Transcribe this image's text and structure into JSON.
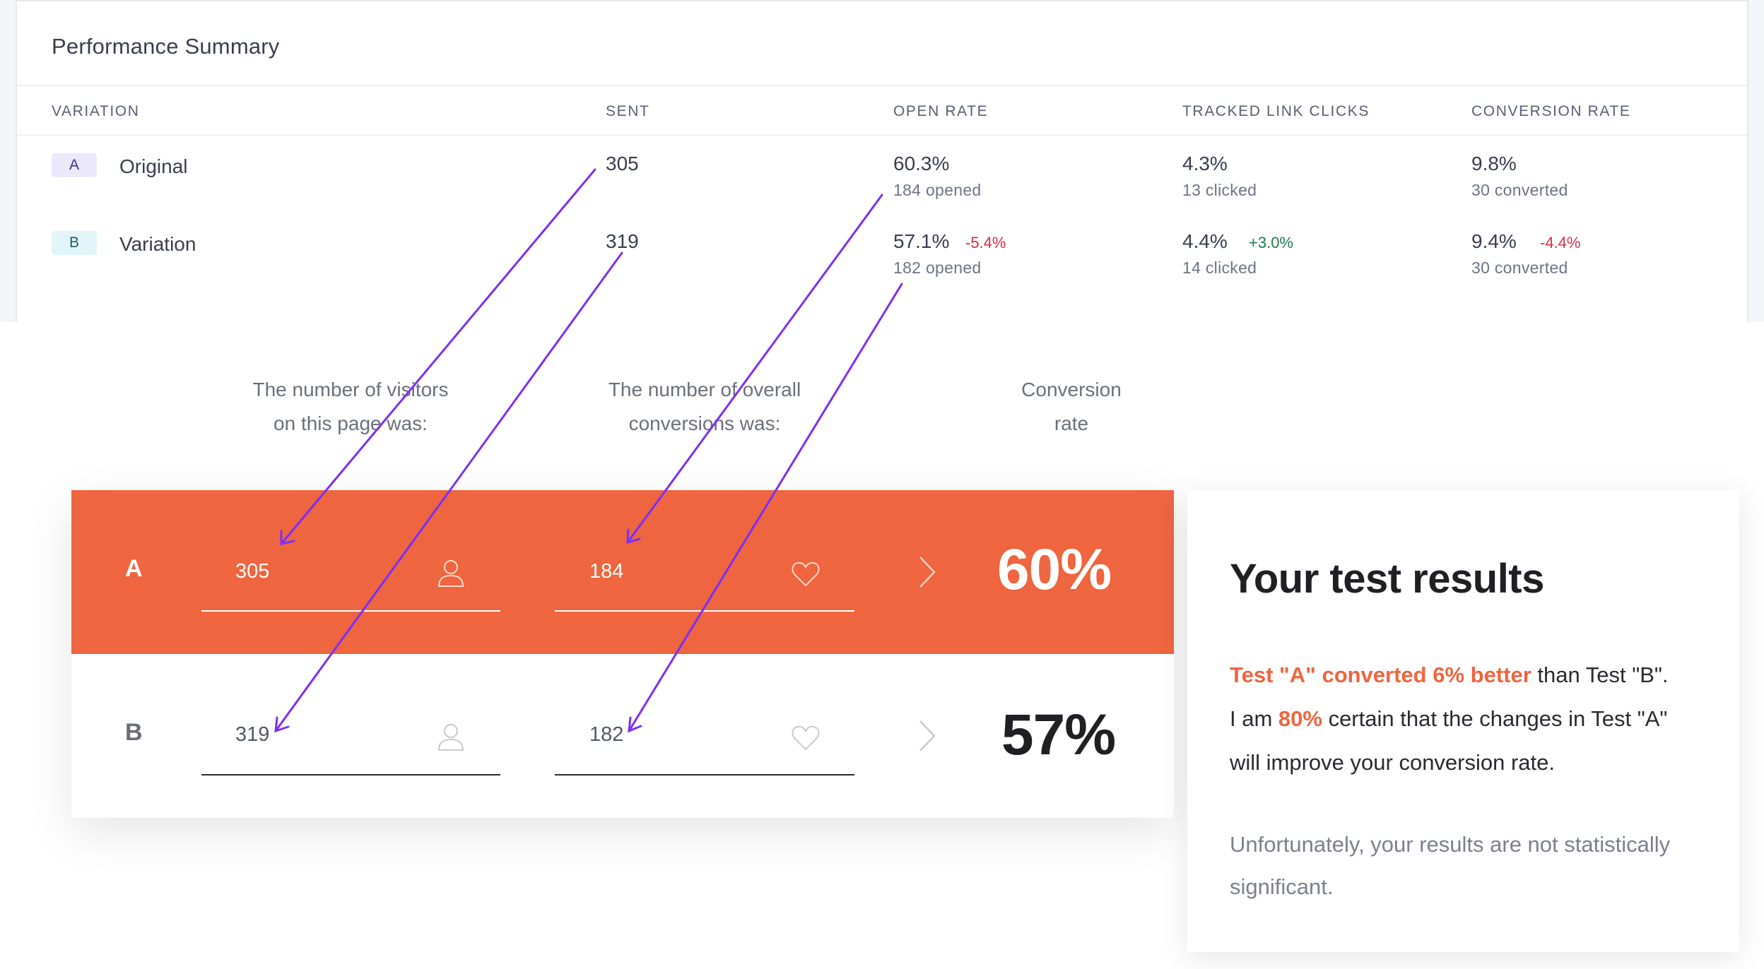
{
  "summary": {
    "title": "Performance Summary",
    "columns": [
      "VARIATION",
      "SENT",
      "OPEN RATE",
      "TRACKED LINK CLICKS",
      "CONVERSION RATE"
    ],
    "rows": [
      {
        "badge": "A",
        "name": "Original",
        "sent": "305",
        "open_rate": "60.3%",
        "open_delta": "",
        "opened": "184 opened",
        "clicks": "4.3%",
        "clicks_delta": "",
        "clicked": "13 clicked",
        "conv_rate": "9.8%",
        "conv_delta": "",
        "converted": "30 converted"
      },
      {
        "badge": "B",
        "name": "Variation",
        "sent": "319",
        "open_rate": "57.1%",
        "open_delta": "-5.4%",
        "opened": "182 opened",
        "clicks": "4.4%",
        "clicks_delta": "+3.0%",
        "clicked": "14 clicked",
        "conv_rate": "9.4%",
        "conv_delta": "-4.4%",
        "converted": "30 converted"
      }
    ]
  },
  "calculator": {
    "label_visitors_1": "The number of visitors",
    "label_visitors_2": "on this page was:",
    "label_conversions_1": "The number of overall",
    "label_conversions_2": "conversions was:",
    "label_rate_1": "Conversion",
    "label_rate_2": "rate",
    "rows": [
      {
        "letter": "A",
        "visitors": "305",
        "conversions": "184",
        "rate": "60%"
      },
      {
        "letter": "B",
        "visitors": "319",
        "conversions": "182",
        "rate": "57%"
      }
    ]
  },
  "results": {
    "title": "Your test results",
    "line1_highlight": "Test \"A\" converted 6% better",
    "line1_rest": " than Test \"B\".",
    "line2_pre": "I am ",
    "line2_highlight": "80%",
    "line2_rest": " certain that the changes in Test \"A\"",
    "line3": "will improve your conversion rate.",
    "note": "Unfortunately, your results are not statistically significant."
  },
  "colors": {
    "accent": "#ee653f",
    "arrow": "#7b2ff7",
    "delta_negative": "#d22d4c",
    "delta_positive": "#1f7a4c"
  }
}
